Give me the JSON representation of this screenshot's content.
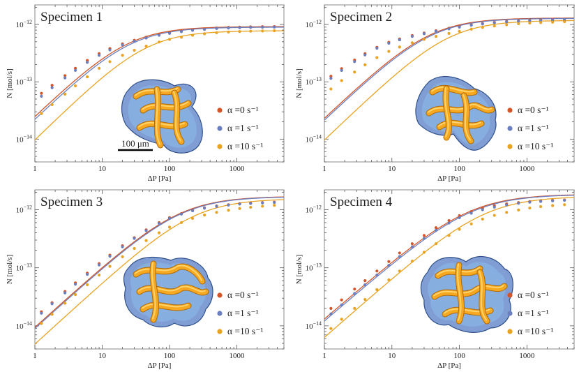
{
  "figure": {
    "description_free": true
  },
  "colors": {
    "alpha0": "#d2562a",
    "alpha1": "#6b7fbf",
    "alpha10": "#e8a322",
    "frame": "#888888",
    "tick_text": "#222222"
  },
  "chart_data": [
    {
      "type": "scatter",
      "title": "Specimen 1",
      "xlabel": "ΔP [Pa]",
      "ylabel": "N [mol/s]",
      "xscale": "log",
      "yscale": "log",
      "xlim": [
        1,
        5000
      ],
      "ylim": [
        4e-15,
        2.2e-12
      ],
      "xticks": [
        1,
        10,
        100,
        1000
      ],
      "xtick_labels": [
        "1",
        "10",
        "100",
        "1000"
      ],
      "yticks": [
        1e-14,
        1e-13,
        1e-12
      ],
      "scale_bar_label": "100 μm",
      "legend": [
        "α =0 s⁻¹",
        "α =1 s⁻¹",
        "α =10 s⁻¹"
      ],
      "x": [
        1.25,
        1.8,
        2.8,
        4,
        6,
        9,
        13,
        20,
        30,
        45,
        70,
        100,
        150,
        220,
        330,
        500,
        750,
        1100,
        1600,
        2400,
        3600
      ],
      "series": [
        {
          "name": "α =0 s⁻¹",
          "Nmax": 9.2e-13,
          "dP50": 24,
          "n": 1.13,
          "values": [
            6.3e-14,
            8.7e-14,
            1.28e-13,
            1.72e-13,
            2.36e-13,
            3.1e-13,
            3.8e-13,
            4.6e-13,
            5.3e-13,
            6e-13,
            6.7e-13,
            7.2e-13,
            7.7e-13,
            8.1e-13,
            8.4e-13,
            8.7e-13,
            8.9e-13,
            9e-13,
            9.1e-13,
            9.15e-13,
            9.2e-13
          ]
        },
        {
          "name": "α =1 s⁻¹",
          "Nmax": 9e-13,
          "dP50": 26,
          "n": 1.13,
          "values": [
            5.6e-14,
            7.9e-14,
            1.17e-13,
            1.58e-13,
            2.18e-13,
            2.9e-13,
            3.6e-13,
            4.4e-13,
            5.1e-13,
            5.8e-13,
            6.5e-13,
            7e-13,
            7.5e-13,
            7.9e-13,
            8.2e-13,
            8.5e-13,
            8.7e-13,
            8.8e-13,
            8.9e-13,
            8.95e-13,
            9e-13
          ]
        },
        {
          "name": "α =10 s⁻¹",
          "Nmax": 7.8e-13,
          "dP50": 45,
          "n": 1.15,
          "values": [
            2.8e-14,
            4e-14,
            6.1e-14,
            8.5e-14,
            1.22e-13,
            1.72e-13,
            2.25e-13,
            2.9e-13,
            3.55e-13,
            4.2e-13,
            4.95e-13,
            5.5e-13,
            6e-13,
            6.5e-13,
            6.9e-13,
            7.2e-13,
            7.4e-13,
            7.55e-13,
            7.65e-13,
            7.72e-13,
            7.78e-13
          ]
        }
      ]
    },
    {
      "type": "scatter",
      "title": "Specimen 2",
      "xlabel": "ΔP [Pa]",
      "ylabel": "N [mol/s]",
      "xscale": "log",
      "yscale": "log",
      "xlim": [
        1,
        5000
      ],
      "ylim": [
        4e-15,
        2.2e-12
      ],
      "xticks": [
        1,
        10,
        100,
        1000
      ],
      "xtick_labels": [
        "1",
        "10",
        "100",
        "1000"
      ],
      "yticks": [
        1e-14,
        1e-13,
        1e-12
      ],
      "legend": [
        "α =0 s⁻¹",
        "α =1 s⁻¹",
        "α =10 s⁻¹"
      ],
      "x": [
        1.25,
        1.8,
        2.8,
        4,
        6,
        9,
        13,
        20,
        30,
        45,
        70,
        100,
        150,
        220,
        330,
        500,
        750,
        1100,
        1600,
        2400,
        3600
      ],
      "series": [
        {
          "name": "α =0 s⁻¹",
          "Nmax": 1.3e-12,
          "dP50": 36,
          "n": 1.12,
          "values": [
            1.25e-13,
            1.7e-13,
            2.4e-13,
            3.1e-13,
            4e-13,
            4.9e-13,
            5.6e-13,
            6.4e-13,
            7.1e-13,
            7.8e-13,
            8.6e-13,
            9.2e-13,
            9.9e-13,
            1.04e-12,
            1.09e-12,
            1.13e-12,
            1.16e-12,
            1.18e-12,
            1.2e-12,
            1.22e-12,
            1.24e-12
          ]
        },
        {
          "name": "α =1 s⁻¹",
          "Nmax": 1.28e-12,
          "dP50": 38,
          "n": 1.12,
          "values": [
            1.15e-13,
            1.58e-13,
            2.25e-13,
            2.95e-13,
            3.85e-13,
            4.7e-13,
            5.4e-13,
            6.2e-13,
            6.9e-13,
            7.6e-13,
            8.4e-13,
            9e-13,
            9.7e-13,
            1.02e-12,
            1.07e-12,
            1.11e-12,
            1.14e-12,
            1.16e-12,
            1.18e-12,
            1.2e-12,
            1.22e-12
          ]
        },
        {
          "name": "α =10 s⁻¹",
          "Nmax": 1.18e-12,
          "dP50": 70,
          "n": 1.13,
          "values": [
            7.5e-14,
            1.05e-13,
            1.48e-13,
            1.98e-13,
            2.65e-13,
            3.4e-13,
            4.05e-13,
            4.8e-13,
            5.5e-13,
            6.2e-13,
            7e-13,
            7.6e-13,
            8.3e-13,
            8.9e-13,
            9.4e-13,
            9.9e-13,
            1.03e-12,
            1.06e-12,
            1.08e-12,
            1.1e-12,
            1.12e-12
          ]
        }
      ]
    },
    {
      "type": "scatter",
      "title": "Specimen 3",
      "xlabel": "ΔP [Pa]",
      "ylabel": "N [mol/s]",
      "xscale": "log",
      "yscale": "log",
      "xlim": [
        1,
        5000
      ],
      "ylim": [
        4e-15,
        2.2e-12
      ],
      "xticks": [
        1,
        10,
        100,
        1000
      ],
      "xtick_labels": [
        "1",
        "10",
        "100",
        "1000"
      ],
      "yticks": [
        1e-14,
        1e-13,
        1e-12
      ],
      "legend": [
        "α =0 s⁻¹",
        "α =1 s⁻¹",
        "α =10 s⁻¹"
      ],
      "x": [
        1.25,
        1.8,
        2.8,
        4,
        6,
        9,
        13,
        20,
        30,
        45,
        70,
        100,
        150,
        220,
        330,
        500,
        750,
        1100,
        1600,
        2400,
        3600
      ],
      "series": [
        {
          "name": "α =0 s⁻¹",
          "Nmax": 1.7e-12,
          "dP50": 140,
          "n": 1.05,
          "values": [
            1.75e-14,
            2.5e-14,
            3.9e-14,
            5.5e-14,
            8.1e-14,
            1.18e-13,
            1.65e-13,
            2.4e-13,
            3.3e-13,
            4.5e-13,
            6e-13,
            7.3e-13,
            8.6e-13,
            9.8e-13,
            1.08e-12,
            1.16e-12,
            1.22e-12,
            1.27e-12,
            1.3e-12,
            1.33e-12,
            1.35e-12
          ]
        },
        {
          "name": "α =1 s⁻¹",
          "Nmax": 1.68e-12,
          "dP50": 145,
          "n": 1.05,
          "values": [
            1.65e-14,
            2.4e-14,
            3.7e-14,
            5.2e-14,
            7.7e-14,
            1.12e-13,
            1.58e-13,
            2.3e-13,
            3.2e-13,
            4.35e-13,
            5.8e-13,
            7.1e-13,
            8.4e-13,
            9.6e-13,
            1.06e-12,
            1.14e-12,
            1.2e-12,
            1.25e-12,
            1.28e-12,
            1.31e-12,
            1.33e-12
          ]
        },
        {
          "name": "α =10 s⁻¹",
          "Nmax": 1.55e-12,
          "dP50": 230,
          "n": 1.06,
          "values": [
            1.1e-14,
            1.58e-14,
            2.45e-14,
            3.45e-14,
            5.1e-14,
            7.5e-14,
            1.06e-13,
            1.55e-13,
            2.15e-13,
            2.95e-13,
            4e-13,
            5e-13,
            6e-13,
            7.1e-13,
            8.1e-13,
            9e-13,
            9.8e-13,
            1.05e-12,
            1.1e-12,
            1.15e-12,
            1.19e-12
          ]
        }
      ]
    },
    {
      "type": "scatter",
      "title": "Specimen 4",
      "xlabel": "ΔP [Pa]",
      "ylabel": "N [mol/s]",
      "xscale": "log",
      "yscale": "log",
      "xlim": [
        1,
        5000
      ],
      "ylim": [
        4e-15,
        2.2e-12
      ],
      "xticks": [
        1,
        10,
        100,
        1000
      ],
      "xtick_labels": [
        "1",
        "10",
        "100",
        "1000"
      ],
      "yticks": [
        1e-14,
        1e-13,
        1e-12
      ],
      "legend": [
        "α =0 s⁻¹",
        "α =1 s⁻¹",
        "α =10 s⁻¹"
      ],
      "x": [
        1.25,
        1.8,
        2.8,
        4,
        6,
        9,
        13,
        20,
        30,
        45,
        70,
        100,
        150,
        220,
        330,
        500,
        750,
        1100,
        1600,
        2400,
        3600
      ],
      "series": [
        {
          "name": "α =0 s⁻¹",
          "Nmax": 1.85e-12,
          "dP50": 140,
          "n": 1.0,
          "values": [
            2e-14,
            2.8e-14,
            4.3e-14,
            6e-14,
            8.8e-14,
            1.28e-13,
            1.8e-13,
            2.6e-13,
            3.6e-13,
            4.9e-13,
            6.5e-13,
            7.9e-13,
            9.3e-13,
            1.06e-12,
            1.17e-12,
            1.26e-12,
            1.33e-12,
            1.38e-12,
            1.42e-12,
            1.45e-12,
            1.47e-12
          ]
        },
        {
          "name": "α =1 s⁻¹",
          "Nmax": 1.83e-12,
          "dP50": 150,
          "n": 1.0,
          "values": [
            1.6e-14,
            2.3e-14,
            3.6e-14,
            5.1e-14,
            7.5e-14,
            1.1e-13,
            1.56e-13,
            2.3e-13,
            3.2e-13,
            4.4e-13,
            5.9e-13,
            7.3e-13,
            8.7e-13,
            1e-12,
            1.11e-12,
            1.21e-12,
            1.29e-12,
            1.35e-12,
            1.39e-12,
            1.42e-12,
            1.45e-12
          ]
        },
        {
          "name": "α =10 s⁻¹",
          "Nmax": 1.7e-12,
          "dP50": 240,
          "n": 1.02,
          "values": [
            9e-15,
            1.3e-14,
            2e-14,
            2.85e-14,
            4.2e-14,
            6.2e-14,
            8.8e-14,
            1.3e-13,
            1.85e-13,
            2.6e-13,
            3.6e-13,
            4.6e-13,
            5.7e-13,
            6.9e-13,
            8e-13,
            9e-13,
            9.9e-13,
            1.07e-12,
            1.13e-12,
            1.18e-12,
            1.22e-12
          ]
        }
      ]
    }
  ]
}
